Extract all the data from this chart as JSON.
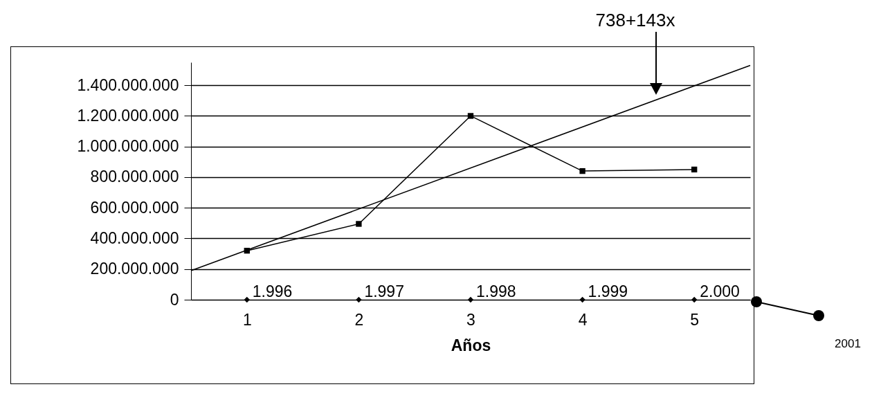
{
  "chart_data": {
    "type": "line",
    "xlabel": "Años",
    "x": [
      1,
      2,
      3,
      4,
      5
    ],
    "xlim": [
      0.5,
      5.5
    ],
    "xticks": [
      1,
      2,
      3,
      4,
      5
    ],
    "ylim": [
      0,
      1550000000
    ],
    "yticks": [
      {
        "value": 0,
        "label": "0"
      },
      {
        "value": 200000000,
        "label": "200.000.000"
      },
      {
        "value": 400000000,
        "label": "400.000.000"
      },
      {
        "value": 600000000,
        "label": "600.000.000"
      },
      {
        "value": 800000000,
        "label": "800.000.000"
      },
      {
        "value": 1000000000,
        "label": "1.000.000.000"
      },
      {
        "value": 1200000000,
        "label": "1.200.000.000"
      },
      {
        "value": 1400000000,
        "label": "1.400.000.000"
      }
    ],
    "grid": "y",
    "series": [
      {
        "color": "#000000",
        "marker": "square",
        "values": [
          320000000,
          495000000,
          1200000000,
          840000000,
          850000000
        ]
      },
      {
        "type": "scatter",
        "color": "#000000",
        "marker": "diamond",
        "values": [
          1996,
          1997,
          1998,
          1999,
          2000
        ],
        "value_labels": [
          "1.996",
          "1.997",
          "1.998",
          "1.999",
          "2.000"
        ]
      },
      {
        "type": "line",
        "color": "#000000",
        "marker": "none",
        "x": [
          0.5,
          5.5
        ],
        "values": [
          190000000,
          1530000000
        ]
      }
    ],
    "annotations": [
      "738+143x",
      "2001"
    ]
  }
}
